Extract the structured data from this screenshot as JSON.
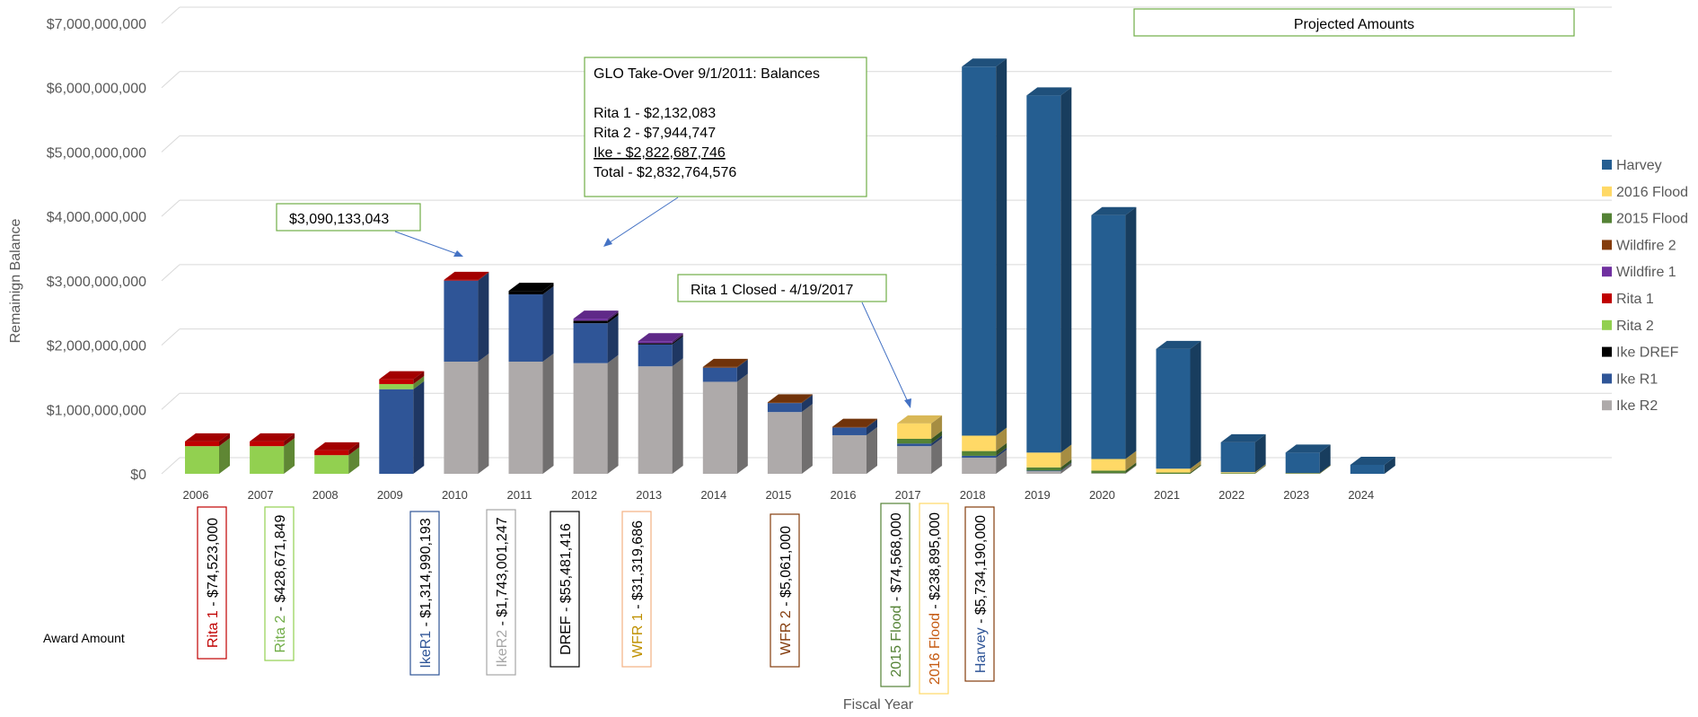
{
  "chart_data": {
    "type": "bar",
    "stacked": true,
    "three_d": true,
    "xlabel": "Fiscal Year",
    "ylabel": "Remainign Balance",
    "ylim": [
      0,
      7000000000
    ],
    "yticks": [
      "$0",
      "$1,000,000,000",
      "$2,000,000,000",
      "$3,000,000,000",
      "$4,000,000,000",
      "$5,000,000,000",
      "$6,000,000,000",
      "$7,000,000,000"
    ],
    "yticks_values": [
      0,
      1000000000,
      2000000000,
      3000000000,
      4000000000,
      5000000000,
      6000000000,
      7000000000
    ],
    "grid": true,
    "legend_position": "right",
    "categories": [
      "2006",
      "2007",
      "2008",
      "2009",
      "2010",
      "2011",
      "2012",
      "2013",
      "2014",
      "2015",
      "2016",
      "2017",
      "2018",
      "2019",
      "2020",
      "2021",
      "2022",
      "2023",
      "2024"
    ],
    "series": [
      {
        "name": "Ike R2",
        "color": "#aeaaaa",
        "values": [
          0,
          0,
          0,
          0,
          1743000000,
          1743000000,
          1720000000,
          1670000000,
          1430000000,
          960000000,
          600000000,
          430000000,
          250000000,
          40000000,
          10000000,
          0,
          0,
          0,
          0
        ]
      },
      {
        "name": "Ike R1",
        "color": "#2f5597",
        "values": [
          0,
          0,
          0,
          1315000000,
          1260000000,
          1045000000,
          620000000,
          340000000,
          220000000,
          140000000,
          120000000,
          40000000,
          30000000,
          10000000,
          0,
          0,
          0,
          0,
          0
        ]
      },
      {
        "name": "Ike DREF",
        "color": "#000000",
        "values": [
          0,
          0,
          0,
          0,
          0,
          55000000,
          40000000,
          20000000,
          0,
          0,
          0,
          0,
          0,
          0,
          0,
          0,
          0,
          0,
          0
        ]
      },
      {
        "name": "Rita 2",
        "color": "#92d050",
        "values": [
          430000000,
          430000000,
          290000000,
          80000000,
          0,
          0,
          0,
          0,
          0,
          0,
          0,
          0,
          0,
          0,
          0,
          0,
          0,
          0,
          0
        ]
      },
      {
        "name": "Rita 1",
        "color": "#c00000",
        "values": [
          74000000,
          74000000,
          74000000,
          74000000,
          2000000,
          0,
          0,
          0,
          0,
          0,
          0,
          0,
          0,
          0,
          0,
          0,
          0,
          0,
          0
        ]
      },
      {
        "name": "Wildfire 1",
        "color": "#7030a0",
        "values": [
          0,
          0,
          0,
          0,
          0,
          0,
          31000000,
          31000000,
          0,
          0,
          0,
          0,
          0,
          0,
          0,
          0,
          0,
          0,
          0
        ]
      },
      {
        "name": "Wildfire 2",
        "color": "#843c0c",
        "values": [
          0,
          0,
          0,
          0,
          0,
          0,
          0,
          0,
          5000000,
          5000000,
          5000000,
          0,
          0,
          0,
          0,
          0,
          0,
          0,
          0
        ]
      },
      {
        "name": "2015 Flood",
        "color": "#548235",
        "values": [
          0,
          0,
          0,
          0,
          0,
          0,
          0,
          0,
          0,
          0,
          0,
          74000000,
          74000000,
          50000000,
          40000000,
          20000000,
          10000000,
          5000000,
          0
        ]
      },
      {
        "name": "2016 Flood",
        "color": "#ffd966",
        "values": [
          0,
          0,
          0,
          0,
          0,
          0,
          0,
          0,
          0,
          0,
          0,
          239000000,
          239000000,
          230000000,
          180000000,
          60000000,
          15000000,
          5000000,
          0
        ]
      },
      {
        "name": "Harvey",
        "color": "#255e91",
        "values": [
          0,
          0,
          0,
          0,
          0,
          0,
          0,
          0,
          0,
          0,
          0,
          0,
          5734000000,
          5550000000,
          3790000000,
          1860000000,
          465000000,
          320000000,
          140000000
        ]
      }
    ],
    "legend_order": [
      "Harvey",
      "2016 Flood",
      "2015 Flood",
      "Wildfire 2",
      "Wildfire 1",
      "Rita 1",
      "Rita 2",
      "Ike DREF",
      "Ike R1",
      "Ike R2"
    ],
    "annotations": {
      "projected": "Projected Amounts",
      "peak": "$3,090,133,043",
      "glo_title": "GLO Take-Over 9/1/2011: Balances",
      "glo_rita1": "Rita 1 - $2,132,083",
      "glo_rita2": "Rita 2 - $7,944,747",
      "glo_ike": "Ike - $2,822,687,746",
      "glo_total": "Total - $2,832,764,576",
      "rita_closed": "Rita 1 Closed - 4/19/2017"
    },
    "award_label": "Award Amount",
    "awards": [
      {
        "name": "Rita 1",
        "amount": " - $74,523,000",
        "name_color": "#c00000",
        "border": "#c00000"
      },
      {
        "name": "Rita 2",
        "amount": " - $428,671,849",
        "name_color": "#70ad47",
        "border": "#92d050"
      },
      {
        "name": "IkeR1",
        "amount": " - $1,314,990,193",
        "name_color": "#2f5597",
        "border": "#2f5597"
      },
      {
        "name": "IkeR2",
        "amount": " - $1,743,001,247",
        "name_color": "#a6a6a6",
        "border": "#a6a6a6"
      },
      {
        "name": "DREF",
        "amount": " - $55,481,416",
        "name_color": "#000000",
        "border": "#000000"
      },
      {
        "name": "WFR 1",
        "amount": " - $31,319,686",
        "name_color": "#bf9000",
        "border": "#f4b183"
      },
      {
        "name": "WFR 2",
        "amount": " - $5,061,000",
        "name_color": "#843c0c",
        "border": "#843c0c"
      },
      {
        "name": "2015 Flood",
        "amount": " - $74,568,000",
        "name_color": "#548235",
        "border": "#548235"
      },
      {
        "name": "2016 Flood",
        "amount": " - $238,895,000",
        "name_color": "#c55a11",
        "border": "#ffd966"
      },
      {
        "name": "Harvey",
        "amount": " - $5,734,190,000",
        "name_color": "#2f5597",
        "border": "#843c0c"
      }
    ]
  }
}
